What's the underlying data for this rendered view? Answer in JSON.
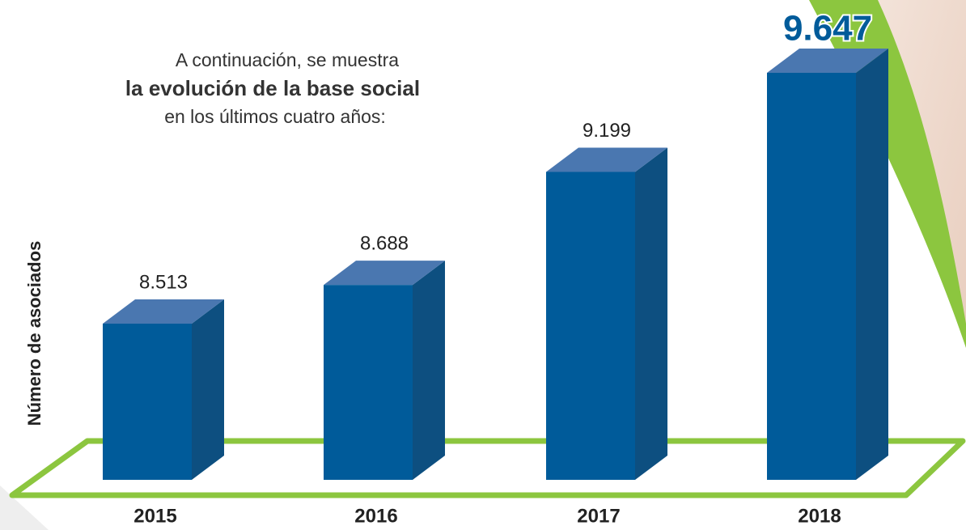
{
  "chart_data": {
    "type": "bar3d",
    "title_lines": [
      "A continuación, se muestra",
      "la evolución de la base social",
      "en los últimos cuatro años:"
    ],
    "ylabel": "Número de asociados",
    "categories": [
      "2015",
      "2016",
      "2017",
      "2018"
    ],
    "values": [
      8513,
      8688,
      9199,
      9647
    ],
    "value_labels": [
      "8.513",
      "8.688",
      "9.199",
      "9.647"
    ],
    "color": "#005b9a"
  }
}
